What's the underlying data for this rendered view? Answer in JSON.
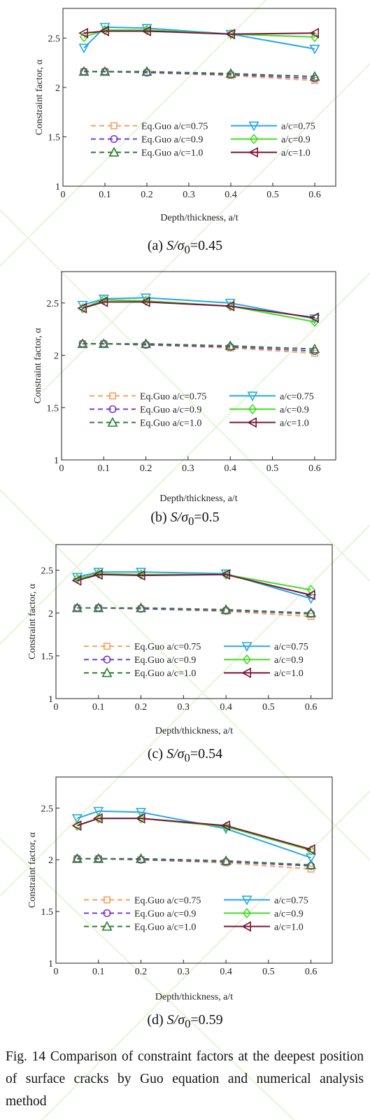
{
  "colors": {
    "guo_075": "#f4a460",
    "guo_09": "#7b3fd1",
    "guo_10": "#2e7d32",
    "num_075": "#2aa7e6",
    "num_09": "#44dd22",
    "num_10": "#7a1438",
    "axis": "#222222"
  },
  "chart_data": [
    {
      "type": "line",
      "panel": "(a)",
      "caption_prefix": "(a) ",
      "caption_ratio": "S/σ",
      "caption_sub": "0",
      "caption_value": "=0.45",
      "xlabel": "Depth/thickness, a/t",
      "ylabel": "Constraint factor, α",
      "xlim": [
        0,
        0.65
      ],
      "ylim": [
        1,
        2.8
      ],
      "xticks": [
        "0",
        "0.1",
        "0.2",
        "0.3",
        "0.4",
        "0.5",
        "0.6"
      ],
      "yticks": [
        "1",
        "1.5",
        "2",
        "2.5"
      ],
      "x": [
        0.05,
        0.1,
        0.2,
        0.4,
        0.6
      ],
      "series": [
        {
          "name": "Eq.Guo a/c=0.75",
          "marker": "square",
          "dash": true,
          "color": "#f4a460",
          "values": [
            2.16,
            2.16,
            2.15,
            2.12,
            2.07
          ]
        },
        {
          "name": "Eq.Guo a/c=0.9",
          "marker": "circle",
          "dash": true,
          "color": "#7b3fd1",
          "values": [
            2.16,
            2.16,
            2.15,
            2.13,
            2.09
          ]
        },
        {
          "name": "Eq.Guo a/c=1.0",
          "marker": "triangle-up",
          "dash": true,
          "color": "#2e7d32",
          "values": [
            2.16,
            2.16,
            2.16,
            2.14,
            2.11
          ]
        },
        {
          "name": "a/c=0.75",
          "marker": "triangle-down",
          "dash": false,
          "color": "#2aa7e6",
          "values": [
            2.4,
            2.61,
            2.6,
            2.54,
            2.39
          ]
        },
        {
          "name": "a/c=0.9",
          "marker": "diamond",
          "dash": false,
          "color": "#44dd22",
          "values": [
            2.51,
            2.58,
            2.58,
            2.54,
            2.51
          ]
        },
        {
          "name": "a/c=1.0",
          "marker": "triangle-left",
          "dash": false,
          "color": "#7a1438",
          "values": [
            2.55,
            2.57,
            2.57,
            2.54,
            2.55
          ]
        }
      ]
    },
    {
      "type": "line",
      "panel": "(b)",
      "caption_prefix": "(b) ",
      "caption_ratio": "S/σ",
      "caption_sub": "0",
      "caption_value": "=0.5",
      "xlabel": "Depth/thickness, a/t",
      "ylabel": "Constraint factor, α",
      "xlim": [
        0,
        0.65
      ],
      "ylim": [
        1,
        2.8
      ],
      "xticks": [
        "0",
        "0.1",
        "0.2",
        "0.3",
        "0.4",
        "0.5",
        "0.6"
      ],
      "yticks": [
        "1",
        "1.5",
        "2",
        "2.5"
      ],
      "x": [
        0.05,
        0.1,
        0.2,
        0.4,
        0.6
      ],
      "series": [
        {
          "name": "Eq.Guo a/c=0.75",
          "marker": "square",
          "dash": true,
          "color": "#f4a460",
          "values": [
            2.11,
            2.11,
            2.1,
            2.07,
            2.02
          ]
        },
        {
          "name": "Eq.Guo a/c=0.9",
          "marker": "circle",
          "dash": true,
          "color": "#7b3fd1",
          "values": [
            2.11,
            2.11,
            2.1,
            2.08,
            2.04
          ]
        },
        {
          "name": "Eq.Guo a/c=1.0",
          "marker": "triangle-up",
          "dash": true,
          "color": "#2e7d32",
          "values": [
            2.11,
            2.11,
            2.11,
            2.09,
            2.06
          ]
        },
        {
          "name": "a/c=0.75",
          "marker": "triangle-down",
          "dash": false,
          "color": "#2aa7e6",
          "values": [
            2.48,
            2.54,
            2.55,
            2.5,
            2.35
          ]
        },
        {
          "name": "a/c=0.9",
          "marker": "diamond",
          "dash": false,
          "color": "#44dd22",
          "values": [
            2.45,
            2.53,
            2.52,
            2.47,
            2.32
          ]
        },
        {
          "name": "a/c=1.0",
          "marker": "triangle-left",
          "dash": false,
          "color": "#7a1438",
          "values": [
            2.45,
            2.51,
            2.51,
            2.47,
            2.36
          ]
        }
      ]
    },
    {
      "type": "line",
      "panel": "(c)",
      "caption_prefix": "(c) ",
      "caption_ratio": "S/σ",
      "caption_sub": "0",
      "caption_value": "=0.54",
      "xlabel": "Depth/thickness, a/t",
      "ylabel": "Constraint factor, α",
      "xlim": [
        0,
        0.65
      ],
      "ylim": [
        1,
        2.8
      ],
      "xticks": [
        "0",
        "0.1",
        "0.2",
        "0.3",
        "0.4",
        "0.5",
        "0.6"
      ],
      "yticks": [
        "1",
        "1.5",
        "2",
        "2.5"
      ],
      "x": [
        0.05,
        0.1,
        0.2,
        0.4,
        0.6
      ],
      "series": [
        {
          "name": "Eq.Guo a/c=0.75",
          "marker": "square",
          "dash": true,
          "color": "#f4a460",
          "values": [
            2.06,
            2.06,
            2.05,
            2.02,
            1.96
          ]
        },
        {
          "name": "Eq.Guo a/c=0.9",
          "marker": "circle",
          "dash": true,
          "color": "#7b3fd1",
          "values": [
            2.06,
            2.06,
            2.05,
            2.03,
            1.99
          ]
        },
        {
          "name": "Eq.Guo a/c=1.0",
          "marker": "triangle-up",
          "dash": true,
          "color": "#2e7d32",
          "values": [
            2.06,
            2.06,
            2.06,
            2.04,
            2.0
          ]
        },
        {
          "name": "a/c=0.75",
          "marker": "triangle-down",
          "dash": false,
          "color": "#2aa7e6",
          "values": [
            2.42,
            2.48,
            2.48,
            2.46,
            2.17
          ]
        },
        {
          "name": "a/c=0.9",
          "marker": "diamond",
          "dash": false,
          "color": "#44dd22",
          "values": [
            2.4,
            2.46,
            2.45,
            2.45,
            2.27
          ]
        },
        {
          "name": "a/c=1.0",
          "marker": "triangle-left",
          "dash": false,
          "color": "#7a1438",
          "values": [
            2.38,
            2.45,
            2.44,
            2.45,
            2.21
          ]
        }
      ]
    },
    {
      "type": "line",
      "panel": "(d)",
      "caption_prefix": "(d) ",
      "caption_ratio": "S/σ",
      "caption_sub": "0",
      "caption_value": "=0.59",
      "xlabel": "Depth/thickness, a/t",
      "ylabel": "Constraint factor, α",
      "xlim": [
        0,
        0.65
      ],
      "ylim": [
        1,
        2.8
      ],
      "xticks": [
        "0",
        "0.1",
        "0.2",
        "0.3",
        "0.4",
        "0.5",
        "0.6"
      ],
      "yticks": [
        "1",
        "1.5",
        "2",
        "2.5"
      ],
      "x": [
        0.05,
        0.1,
        0.2,
        0.4,
        0.6
      ],
      "series": [
        {
          "name": "Eq.Guo a/c=0.75",
          "marker": "square",
          "dash": true,
          "color": "#f4a460",
          "values": [
            2.01,
            2.01,
            2.0,
            1.97,
            1.91
          ]
        },
        {
          "name": "Eq.Guo a/c=0.9",
          "marker": "circle",
          "dash": true,
          "color": "#7b3fd1",
          "values": [
            2.01,
            2.01,
            2.0,
            1.98,
            1.94
          ]
        },
        {
          "name": "Eq.Guo a/c=1.0",
          "marker": "triangle-up",
          "dash": true,
          "color": "#2e7d32",
          "values": [
            2.01,
            2.01,
            2.01,
            1.99,
            1.95
          ]
        },
        {
          "name": "a/c=0.75",
          "marker": "triangle-down",
          "dash": false,
          "color": "#2aa7e6",
          "values": [
            2.4,
            2.47,
            2.46,
            2.3,
            2.02
          ]
        },
        {
          "name": "a/c=0.9",
          "marker": "diamond",
          "dash": false,
          "color": "#44dd22",
          "values": [
            2.33,
            2.4,
            2.4,
            2.32,
            2.09
          ]
        },
        {
          "name": "a/c=1.0",
          "marker": "triangle-left",
          "dash": false,
          "color": "#7a1438",
          "values": [
            2.33,
            2.4,
            2.4,
            2.33,
            2.1
          ]
        }
      ]
    }
  ],
  "figure_caption": "Fig. 14 Comparison of constraint factors at the deepest position of surface cracks by Guo equation and numerical analysis method"
}
